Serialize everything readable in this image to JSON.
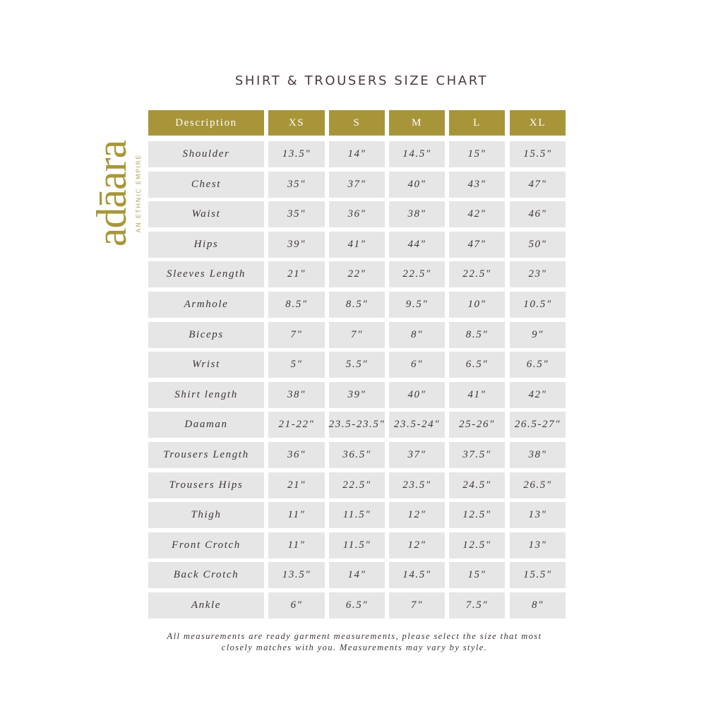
{
  "title": "SHIRT & TROUSERS SIZE CHART",
  "logo": {
    "word": "adāara",
    "tagline": "AN ETHNIC EMPIRE",
    "color": "#a8963a"
  },
  "colors": {
    "header_bg": "#a8953a",
    "cell_bg": "#e6e6e6",
    "text": "#3f3535"
  },
  "table": {
    "headers": [
      "Description",
      "XS",
      "S",
      "M",
      "L",
      "XL"
    ],
    "rows": [
      [
        "Shoulder",
        "13.5\"",
        "14\"",
        "14.5\"",
        "15\"",
        "15.5\""
      ],
      [
        "Chest",
        "35\"",
        "37\"",
        "40\"",
        "43\"",
        "47\""
      ],
      [
        "Waist",
        "35\"",
        "36\"",
        "38\"",
        "42\"",
        "46\""
      ],
      [
        "Hips",
        "39\"",
        "41\"",
        "44\"",
        "47\"",
        "50\""
      ],
      [
        "Sleeves Length",
        "21\"",
        "22\"",
        "22.5\"",
        "22.5\"",
        "23\""
      ],
      [
        "Armhole",
        "8.5\"",
        "8.5\"",
        "9.5\"",
        "10\"",
        "10.5\""
      ],
      [
        "Biceps",
        "7\"",
        "7\"",
        "8\"",
        "8.5\"",
        "9\""
      ],
      [
        "Wrist",
        "5\"",
        "5.5\"",
        "6\"",
        "6.5\"",
        "6.5\""
      ],
      [
        "Shirt length",
        "38\"",
        "39\"",
        "40\"",
        "41\"",
        "42\""
      ],
      [
        "Daaman",
        "21-22\"",
        "23.5-23.5\"",
        "23.5-24\"",
        "25-26\"",
        "26.5-27\""
      ],
      [
        "Trousers Length",
        "36\"",
        "36.5\"",
        "37\"",
        "37.5\"",
        "38\""
      ],
      [
        "Trousers Hips",
        "21\"",
        "22.5\"",
        "23.5\"",
        "24.5\"",
        "26.5\""
      ],
      [
        "Thigh",
        "11\"",
        "11.5\"",
        "12\"",
        "12.5\"",
        "13\""
      ],
      [
        "Front Crotch",
        "11\"",
        "11.5\"",
        "12\"",
        "12.5\"",
        "13\""
      ],
      [
        "Back Crotch",
        "13.5\"",
        "14\"",
        "14.5\"",
        "15\"",
        "15.5\""
      ],
      [
        "Ankle",
        "6\"",
        "6.5\"",
        "7\"",
        "7.5\"",
        "8\""
      ]
    ]
  },
  "note": {
    "line1": "All measurements are ready garment measurements, please select the size that most",
    "line2": "closely matches with you. Measurements may vary by style."
  }
}
